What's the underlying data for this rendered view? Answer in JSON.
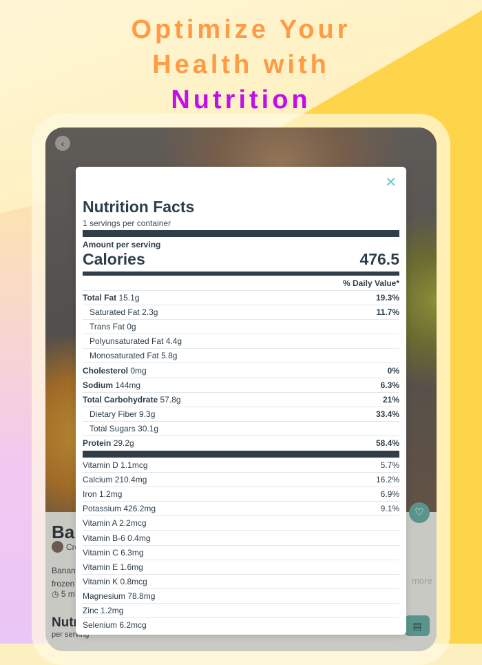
{
  "headline": {
    "line1": "Optimize Your",
    "line2": "Health with",
    "accent": "Nutrition"
  },
  "colors": {
    "headline": "#ff9a45",
    "accent": "#c010ea",
    "bar": "#2f3e48",
    "teal": "#5a948c",
    "close": "#5fc8c4"
  },
  "background_card": {
    "title": "Bar",
    "creator": "Cre",
    "desc1": "Banana",
    "desc2": "frozen",
    "time": "5 m",
    "more": "more",
    "nutrition": "Nutr",
    "per_serving": "per serving"
  },
  "modal": {
    "title": "Nutrition Facts",
    "servings": "1 servings per container",
    "amount_label": "Amount per serving",
    "calories_label": "Calories",
    "calories": "476.5",
    "daily_value_label": "% Daily Value*",
    "nutrients": [
      {
        "name": "Total Fat",
        "amount": "15.1g",
        "pct": "19.3%",
        "bold": true
      },
      {
        "name": "Saturated Fat",
        "amount": "2.3g",
        "pct": "11.7%",
        "indent": true
      },
      {
        "name": "Trans Fat",
        "amount": "0g",
        "pct": "",
        "indent": true
      },
      {
        "name": "Polyunsaturated Fat",
        "amount": "4.4g",
        "pct": "",
        "indent": true
      },
      {
        "name": "Monosaturated Fat",
        "amount": "5.8g",
        "pct": "",
        "indent": true
      },
      {
        "name": "Cholesterol",
        "amount": "0mg",
        "pct": "0%",
        "bold": true
      },
      {
        "name": "Sodium",
        "amount": "144mg",
        "pct": "6.3%",
        "bold": true
      },
      {
        "name": "Total Carbohydrate",
        "amount": "57.8g",
        "pct": "21%",
        "bold": true
      },
      {
        "name": "Dietary Fiber",
        "amount": "9.3g",
        "pct": "33.4%",
        "indent": true
      },
      {
        "name": "Total Sugars",
        "amount": "30.1g",
        "pct": "",
        "indent": true
      },
      {
        "name": "Protein",
        "amount": "29.2g",
        "pct": "58.4%",
        "bold": true
      }
    ],
    "vitamins": [
      {
        "name": "Vitamin D",
        "amount": "1.1mcg",
        "pct": "5.7%"
      },
      {
        "name": "Calcium",
        "amount": "210.4mg",
        "pct": "16.2%"
      },
      {
        "name": "Iron",
        "amount": "1.2mg",
        "pct": "6.9%"
      },
      {
        "name": "Potassium",
        "amount": "426.2mg",
        "pct": "9.1%"
      },
      {
        "name": "Vitamin A",
        "amount": "2.2mcg",
        "pct": ""
      },
      {
        "name": "Vitamin B-6",
        "amount": "0.4mg",
        "pct": ""
      },
      {
        "name": "Vitamin C",
        "amount": "6.3mg",
        "pct": ""
      },
      {
        "name": "Vitamin E",
        "amount": "1.6mg",
        "pct": ""
      },
      {
        "name": "Vitamin K",
        "amount": "0.8mcg",
        "pct": ""
      },
      {
        "name": "Magnesium",
        "amount": "78.8mg",
        "pct": ""
      },
      {
        "name": "Zinc",
        "amount": "1.2mg",
        "pct": ""
      },
      {
        "name": "Selenium",
        "amount": "6.2mcg",
        "pct": ""
      }
    ]
  }
}
